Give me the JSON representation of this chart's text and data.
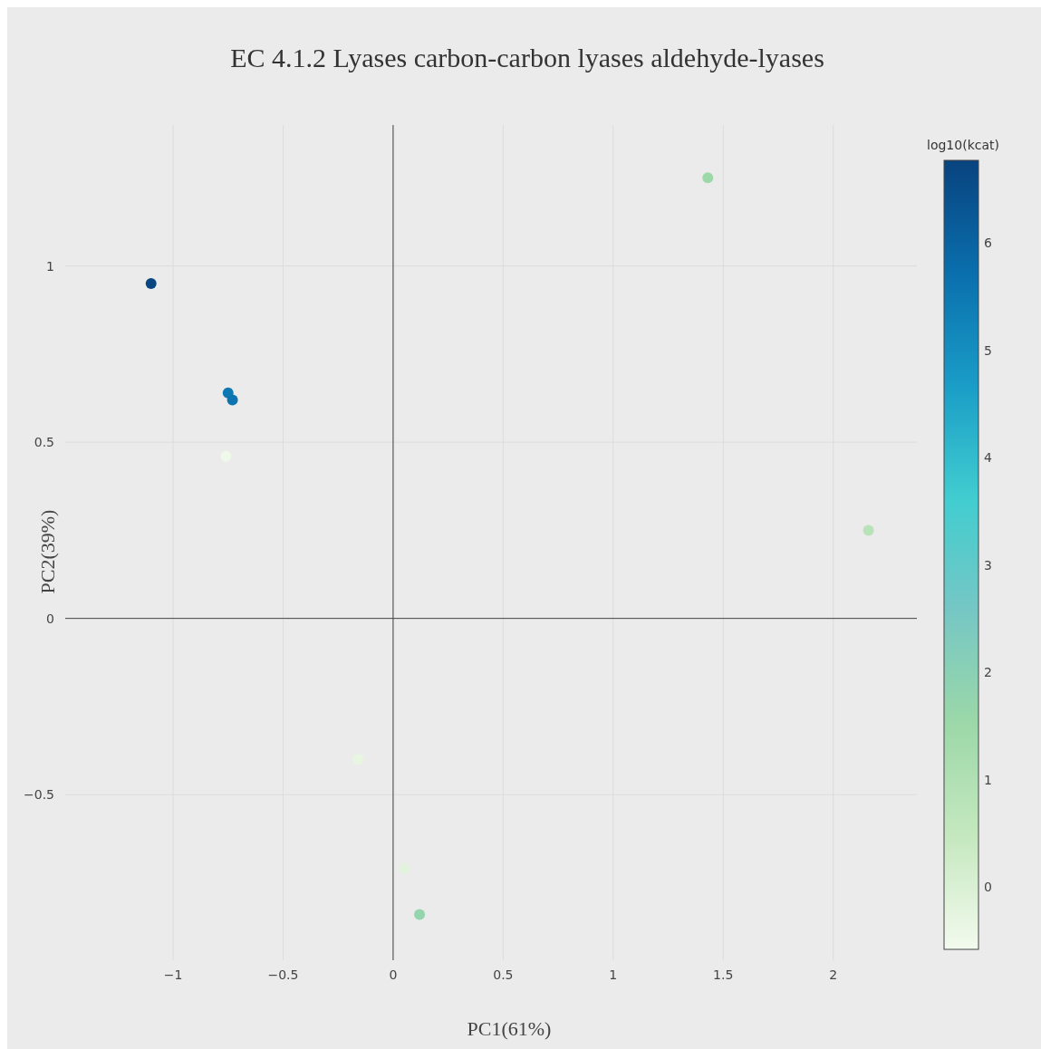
{
  "chart_data": {
    "type": "scatter",
    "title": "EC 4.1.2 Lyases carbon-carbon lyases aldehyde-lyases",
    "xlabel": "PC1(61%)",
    "ylabel": "PC2(39%)",
    "clabel": "log10(kcat)",
    "x": [
      -1.1,
      -0.75,
      -0.73,
      -0.76,
      1.43,
      2.16,
      -0.16,
      0.05,
      0.12
    ],
    "values": [
      0.95,
      0.64,
      0.62,
      0.46,
      1.25,
      0.25,
      -0.4,
      -0.71,
      -0.84
    ],
    "cvalues": [
      6.7,
      5.5,
      5.6,
      -0.5,
      1.5,
      0.8,
      -0.3,
      -0.2,
      1.7
    ],
    "xlim": [
      -1.49,
      2.38
    ],
    "ylim": [
      -0.97,
      1.4
    ],
    "xticks": [
      {
        "value": -1,
        "label": "−1"
      },
      {
        "value": -0.5,
        "label": "−0.5"
      },
      0,
      0.5,
      1,
      1.5,
      2
    ],
    "yticks": [
      {
        "value": -0.5,
        "label": "−0.5"
      },
      0,
      0.5,
      1
    ],
    "clim": [
      -0.58,
      6.77
    ],
    "cticks": [
      0,
      1,
      2,
      3,
      4,
      5,
      6
    ],
    "grid": true,
    "marker": "circle"
  }
}
